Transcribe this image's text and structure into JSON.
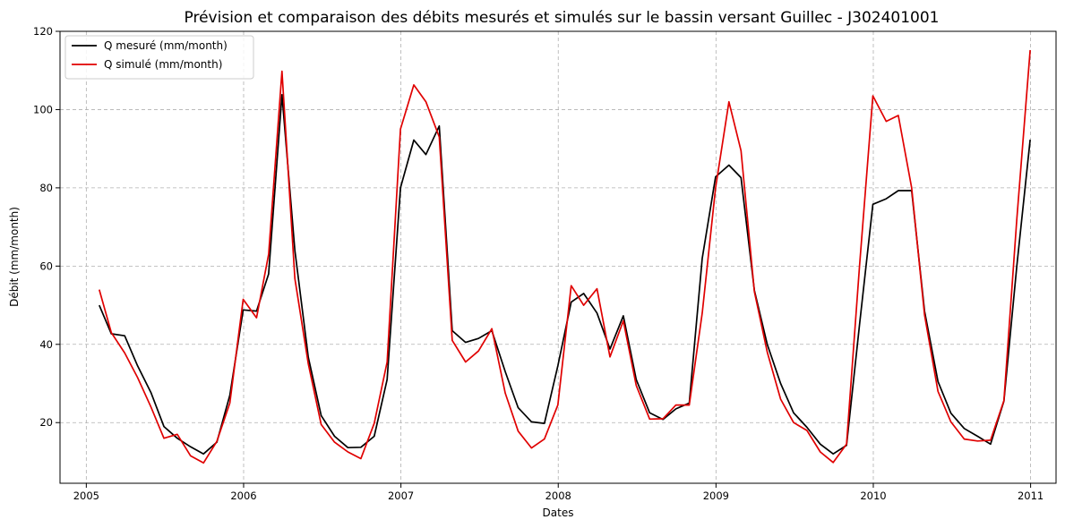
{
  "chart_data": {
    "type": "line",
    "title": "Prévision et comparaison des débits mesurés et simulés sur le bassin versant Guillec - J302401001",
    "xlabel": "Dates",
    "ylabel": "Débit (mm/month)",
    "xlim": [
      "2004-11-01",
      "2011-03-01"
    ],
    "ylim": [
      4.5,
      120
    ],
    "x_ticks": [
      "2005",
      "2006",
      "2007",
      "2008",
      "2009",
      "2010",
      "2011"
    ],
    "y_ticks": [
      "20",
      "40",
      "60",
      "80",
      "100",
      "120"
    ],
    "grid": true,
    "legend_position": "top-left",
    "x": [
      "2005-01-31",
      "2005-02-28",
      "2005-03-31",
      "2005-04-30",
      "2005-05-31",
      "2005-06-30",
      "2005-07-31",
      "2005-08-31",
      "2005-09-30",
      "2005-10-31",
      "2005-11-30",
      "2005-12-31",
      "2006-01-31",
      "2006-02-28",
      "2006-03-31",
      "2006-04-30",
      "2006-05-31",
      "2006-06-30",
      "2006-07-31",
      "2006-08-31",
      "2006-09-30",
      "2006-10-31",
      "2006-11-30",
      "2006-12-31",
      "2007-01-31",
      "2007-02-28",
      "2007-03-31",
      "2007-04-30",
      "2007-05-31",
      "2007-06-30",
      "2007-07-31",
      "2007-08-31",
      "2007-09-30",
      "2007-10-31",
      "2007-11-30",
      "2007-12-31",
      "2008-01-31",
      "2008-02-29",
      "2008-03-31",
      "2008-04-30",
      "2008-05-31",
      "2008-06-30",
      "2008-07-31",
      "2008-08-31",
      "2008-09-30",
      "2008-10-31",
      "2008-11-30",
      "2008-12-31",
      "2009-01-31",
      "2009-02-28",
      "2009-03-31",
      "2009-04-30",
      "2009-05-31",
      "2009-06-30",
      "2009-07-31",
      "2009-08-31",
      "2009-09-30",
      "2009-10-31",
      "2009-11-30",
      "2009-12-31",
      "2010-01-31",
      "2010-02-28",
      "2010-03-31",
      "2010-04-30",
      "2010-05-31",
      "2010-06-30",
      "2010-07-31",
      "2010-08-31",
      "2010-09-30",
      "2010-10-31",
      "2010-11-30",
      "2010-12-31"
    ],
    "series": [
      {
        "name": "Q mesuré (mm/month)",
        "color": "#000000",
        "values": [
          50.0,
          42.7,
          42.2,
          34.5,
          27.7,
          19.0,
          16.0,
          13.8,
          12.0,
          15.0,
          27.0,
          48.8,
          48.5,
          58.0,
          103.8,
          64.0,
          36.7,
          21.8,
          16.5,
          13.6,
          13.7,
          16.5,
          31.0,
          80.0,
          92.2,
          88.5,
          95.8,
          43.5,
          40.5,
          41.5,
          43.5,
          33.0,
          23.8,
          20.2,
          19.8,
          34.5,
          50.8,
          53.0,
          48.0,
          38.8,
          47.3,
          31.0,
          22.5,
          20.8,
          23.5,
          25.0,
          62.0,
          82.8,
          85.8,
          82.6,
          53.8,
          40.0,
          30.0,
          22.5,
          18.8,
          14.5,
          12.0,
          14.2,
          45.0,
          75.8,
          77.2,
          79.3,
          79.3,
          48.5,
          30.5,
          22.4,
          18.5,
          16.5,
          14.5,
          25.5,
          60.0,
          92.3
        ]
      },
      {
        "name": "Q simulé (mm/month)",
        "color": "#e00000",
        "values": [
          54.0,
          43.0,
          37.8,
          31.5,
          24.0,
          16.0,
          17.0,
          11.5,
          9.7,
          15.2,
          25.0,
          51.5,
          46.8,
          63.0,
          109.8,
          56.8,
          35.0,
          19.5,
          15.0,
          12.5,
          10.8,
          19.8,
          35.5,
          95.0,
          106.3,
          102.0,
          93.0,
          41.0,
          35.5,
          38.3,
          44.0,
          27.5,
          17.8,
          13.5,
          15.8,
          24.5,
          55.0,
          50.0,
          54.2,
          36.8,
          46.0,
          29.5,
          20.9,
          21.0,
          24.5,
          24.5,
          48.0,
          80.0,
          102.0,
          89.5,
          53.5,
          38.0,
          26.0,
          20.0,
          18.0,
          12.5,
          9.8,
          14.5,
          60.0,
          103.5,
          97.0,
          98.5,
          80.0,
          47.5,
          28.0,
          20.2,
          15.8,
          15.3,
          15.5,
          25.6,
          72.0,
          115.2
        ]
      }
    ]
  }
}
